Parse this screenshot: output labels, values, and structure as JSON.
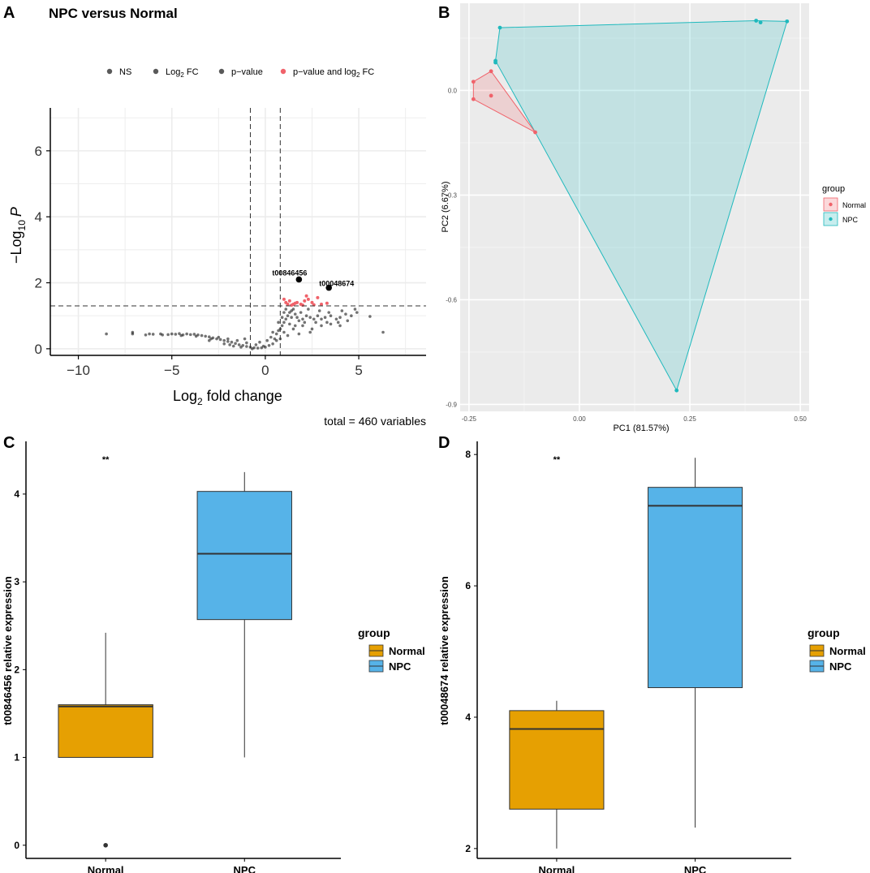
{
  "chart_data": [
    {
      "id": "A",
      "type": "scatter",
      "panel_label": "A",
      "title": "NPC versus Normal",
      "xlabel_main": "Log",
      "xlabel_sub": "2",
      "xlabel_tail": " fold change",
      "ylabel_pre": "−Log",
      "ylabel_sub": "10",
      "ylabel_tail": "P",
      "xlim": [
        -11.5,
        8.6
      ],
      "ylim": [
        -0.2,
        7.3
      ],
      "xticks": [
        -10,
        -5,
        0,
        5
      ],
      "yticks": [
        0,
        2,
        4,
        6
      ],
      "fc_cutoffs": [
        -0.8,
        0.8
      ],
      "p_cutoff": 1.3,
      "legend_items": [
        {
          "label": "NS",
          "color": "#595959"
        },
        {
          "label": "Log",
          "sub": "2",
          "tail": " FC",
          "color": "#595959"
        },
        {
          "label": "p−value",
          "color": "#595959"
        },
        {
          "label": "p−value and log",
          "sub": "2",
          "tail": " FC",
          "color": "#f0626a"
        }
      ],
      "caption": "total = 460 variables",
      "highlighted": [
        {
          "label": "t00846456",
          "x": 1.8,
          "y": 2.1
        },
        {
          "label": "t00048674",
          "x": 3.4,
          "y": 1.85
        }
      ],
      "significant_points": [
        [
          1.1,
          1.4
        ],
        [
          1.3,
          1.45
        ],
        [
          1.5,
          1.35
        ],
        [
          1.7,
          1.4
        ],
        [
          1.9,
          1.35
        ],
        [
          2.1,
          1.45
        ],
        [
          2.3,
          1.5
        ],
        [
          2.5,
          1.4
        ],
        [
          2.8,
          1.55
        ],
        [
          3.0,
          1.35
        ],
        [
          1.2,
          1.35
        ],
        [
          2.0,
          1.32
        ],
        [
          2.6,
          1.33
        ],
        [
          3.3,
          1.38
        ],
        [
          1.4,
          1.32
        ],
        [
          2.2,
          1.6
        ],
        [
          1.0,
          1.5
        ],
        [
          1.6,
          1.38
        ]
      ],
      "ns_points": [
        [
          -8.5,
          0.45
        ],
        [
          -7.1,
          0.5
        ],
        [
          -7.1,
          0.45
        ],
        [
          -6.4,
          0.42
        ],
        [
          -6.2,
          0.45
        ],
        [
          -6.0,
          0.44
        ],
        [
          -5.6,
          0.45
        ],
        [
          -5.5,
          0.42
        ],
        [
          -5.0,
          0.45
        ],
        [
          -4.8,
          0.44
        ],
        [
          -4.6,
          0.46
        ],
        [
          -4.4,
          0.42
        ],
        [
          -4.2,
          0.45
        ],
        [
          -4.0,
          0.43
        ],
        [
          -3.8,
          0.44
        ],
        [
          -3.6,
          0.42
        ],
        [
          -3.4,
          0.4
        ],
        [
          -3.2,
          0.38
        ],
        [
          -3.0,
          0.36
        ],
        [
          -2.8,
          0.33
        ],
        [
          -2.6,
          0.3
        ],
        [
          -2.4,
          0.28
        ],
        [
          -2.2,
          0.25
        ],
        [
          -2.0,
          0.22
        ],
        [
          -1.8,
          0.2
        ],
        [
          -1.6,
          0.16
        ],
        [
          -1.4,
          0.12
        ],
        [
          -1.2,
          0.1
        ],
        [
          -1.0,
          0.07
        ],
        [
          -0.8,
          0.05
        ],
        [
          -0.6,
          0.03
        ],
        [
          -0.4,
          0.02
        ],
        [
          -0.2,
          0.03
        ],
        [
          0.0,
          0.05
        ],
        [
          0.2,
          0.1
        ],
        [
          0.4,
          0.15
        ],
        [
          0.5,
          0.3
        ],
        [
          0.6,
          0.45
        ],
        [
          0.7,
          0.55
        ],
        [
          0.8,
          0.6
        ],
        [
          0.9,
          0.7
        ],
        [
          1.0,
          0.8
        ],
        [
          1.1,
          0.9
        ],
        [
          1.2,
          1.0
        ],
        [
          1.3,
          1.1
        ],
        [
          1.4,
          1.15
        ],
        [
          1.5,
          1.2
        ],
        [
          1.6,
          1.05
        ],
        [
          1.7,
          0.95
        ],
        [
          1.8,
          0.85
        ],
        [
          2.0,
          0.9
        ],
        [
          2.2,
          1.0
        ],
        [
          2.4,
          0.95
        ],
        [
          2.6,
          0.9
        ],
        [
          2.8,
          1.0
        ],
        [
          3.0,
          0.9
        ],
        [
          3.2,
          0.95
        ],
        [
          3.5,
          1.0
        ],
        [
          3.8,
          0.9
        ],
        [
          4.0,
          0.95
        ],
        [
          4.3,
          1.05
        ],
        [
          4.6,
          1.0
        ],
        [
          4.9,
          1.1
        ],
        [
          5.6,
          0.98
        ],
        [
          6.3,
          0.5
        ],
        [
          -2.5,
          0.35
        ],
        [
          -2.0,
          0.3
        ],
        [
          -1.5,
          0.25
        ],
        [
          -1.0,
          0.18
        ],
        [
          -0.5,
          0.12
        ],
        [
          0.3,
          0.35
        ],
        [
          0.6,
          0.25
        ],
        [
          1.0,
          0.5
        ],
        [
          1.5,
          0.6
        ],
        [
          2.0,
          0.7
        ],
        [
          2.5,
          0.6
        ],
        [
          3.0,
          0.7
        ],
        [
          3.5,
          0.75
        ],
        [
          4.0,
          0.7
        ],
        [
          1.2,
          0.4
        ],
        [
          1.8,
          0.45
        ],
        [
          2.4,
          0.5
        ],
        [
          0.8,
          0.3
        ],
        [
          -3.0,
          0.25
        ],
        [
          -2.2,
          0.15
        ],
        [
          -1.7,
          0.08
        ],
        [
          -1.1,
          0.3
        ],
        [
          -0.3,
          0.2
        ],
        [
          0.1,
          0.25
        ],
        [
          0.9,
          0.95
        ],
        [
          1.1,
          1.2
        ],
        [
          1.3,
          0.75
        ],
        [
          1.6,
          0.7
        ],
        [
          2.1,
          0.8
        ],
        [
          2.7,
          0.8
        ],
        [
          3.3,
          0.8
        ],
        [
          3.9,
          0.8
        ],
        [
          4.4,
          0.85
        ],
        [
          -4.5,
          0.4
        ],
        [
          -5.2,
          0.43
        ],
        [
          -3.7,
          0.38
        ],
        [
          -2.9,
          0.3
        ],
        [
          -1.9,
          0.12
        ],
        [
          -1.3,
          0.05
        ],
        [
          -0.7,
          0.0
        ],
        [
          -0.1,
          0.08
        ],
        [
          0.4,
          0.5
        ],
        [
          0.7,
          0.8
        ],
        [
          1.0,
          1.1
        ],
        [
          1.4,
          0.95
        ],
        [
          1.9,
          1.1
        ],
        [
          2.3,
          1.2
        ],
        [
          2.9,
          1.15
        ],
        [
          3.4,
          1.1
        ],
        [
          4.1,
          1.15
        ],
        [
          4.8,
          1.2
        ]
      ]
    },
    {
      "id": "B",
      "type": "scatter",
      "panel_label": "B",
      "xlabel": "PC1 (81.57%)",
      "ylabel": "PC2 (6.67%)",
      "xlim": [
        -0.27,
        0.52
      ],
      "ylim": [
        -0.92,
        0.25
      ],
      "xticks": [
        "-0.25",
        "0.00",
        "0.25",
        "0.50"
      ],
      "xtick_values": [
        -0.25,
        0.0,
        0.25,
        0.5
      ],
      "yticks": [
        "0.0",
        "-0.3",
        "-0.6",
        "-0.9"
      ],
      "ytick_values": [
        0.0,
        -0.3,
        -0.6,
        -0.9
      ],
      "legend_title": "group",
      "series": [
        {
          "name": "Normal",
          "color": "#f0626a",
          "fill": "#f6c4c6",
          "points": [
            [
              -0.24,
              0.025
            ],
            [
              -0.24,
              -0.025
            ],
            [
              -0.2,
              0.055
            ],
            [
              -0.2,
              -0.015
            ],
            [
              -0.1,
              -0.12
            ]
          ],
          "hull": [
            [
              -0.24,
              0.025
            ],
            [
              -0.2,
              0.055
            ],
            [
              -0.1,
              -0.12
            ],
            [
              -0.24,
              -0.025
            ]
          ]
        },
        {
          "name": "NPC",
          "color": "#1fb9bd",
          "fill": "#bfe2e0",
          "points": [
            [
              -0.19,
              0.085
            ],
            [
              -0.19,
              0.08
            ],
            [
              -0.18,
              0.18
            ],
            [
              0.22,
              -0.86
            ],
            [
              0.4,
              0.2
            ],
            [
              0.41,
              0.195
            ],
            [
              0.47,
              0.198
            ]
          ],
          "hull": [
            [
              -0.19,
              0.085
            ],
            [
              -0.18,
              0.18
            ],
            [
              0.4,
              0.2
            ],
            [
              0.47,
              0.198
            ],
            [
              0.22,
              -0.86
            ],
            [
              -0.1,
              -0.12
            ]
          ]
        }
      ]
    },
    {
      "id": "C",
      "type": "box",
      "panel_label": "C",
      "ylabel": "t00846456 relative expression",
      "ylim": [
        -0.15,
        4.6
      ],
      "yticks": [
        0,
        1,
        2,
        3,
        4
      ],
      "categories": [
        "Normal",
        "NPC"
      ],
      "significance": "**",
      "legend_title": "group",
      "legend_items": [
        {
          "label": "Normal",
          "color": "#e6a002"
        },
        {
          "label": "NPC",
          "color": "#56b3e8"
        }
      ],
      "boxes": [
        {
          "group": "Normal",
          "color": "#e6a002",
          "min": 1.0,
          "q1": 1.0,
          "median": 1.58,
          "q3": 1.6,
          "max": 2.42,
          "outliers": [
            0.0
          ]
        },
        {
          "group": "NPC",
          "color": "#56b3e8",
          "min": 1.0,
          "q1": 2.57,
          "median": 3.32,
          "q3": 4.03,
          "max": 4.25,
          "outliers": []
        }
      ]
    },
    {
      "id": "D",
      "type": "box",
      "panel_label": "D",
      "ylabel": "t00048674 relative expression",
      "ylim": [
        1.85,
        8.2
      ],
      "yticks": [
        2,
        4,
        6,
        8
      ],
      "categories": [
        "Normal",
        "NPC"
      ],
      "significance": "**",
      "legend_title": "group",
      "legend_items": [
        {
          "label": "Normal",
          "color": "#e6a002"
        },
        {
          "label": "NPC",
          "color": "#56b3e8"
        }
      ],
      "boxes": [
        {
          "group": "Normal",
          "color": "#e6a002",
          "min": 2.0,
          "q1": 2.6,
          "median": 3.82,
          "q3": 4.1,
          "max": 4.25,
          "outliers": []
        },
        {
          "group": "NPC",
          "color": "#56b3e8",
          "min": 2.32,
          "q1": 4.45,
          "median": 7.22,
          "q3": 7.5,
          "max": 7.95,
          "outliers": []
        }
      ]
    }
  ]
}
